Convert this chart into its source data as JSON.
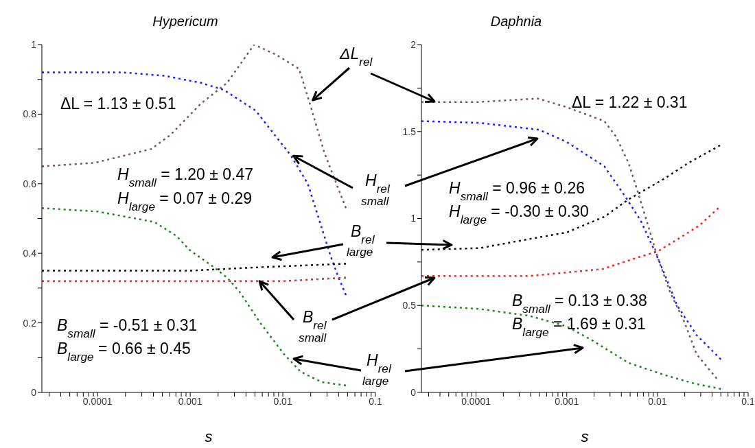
{
  "chart_data": [
    {
      "type": "line",
      "title": "Hypericum",
      "xlabel": "s",
      "log": "x",
      "line_style": "dotted",
      "xlim": [
        2.5e-05,
        0.1
      ],
      "xticks": [
        {
          "value": 3e-05,
          "label": null
        },
        {
          "value": 4e-05,
          "label": null
        },
        {
          "value": 5e-05,
          "label": null
        },
        {
          "value": 6e-05,
          "label": null
        },
        {
          "value": 7e-05,
          "label": null
        },
        {
          "value": 8e-05,
          "label": null
        },
        {
          "value": 9e-05,
          "label": null
        },
        0.0001,
        {
          "value": 0.0002,
          "label": null
        },
        {
          "value": 0.0003,
          "label": null
        },
        {
          "value": 0.0004,
          "label": null
        },
        {
          "value": 0.0005,
          "label": null
        },
        {
          "value": 0.0006,
          "label": null
        },
        {
          "value": 0.0007,
          "label": null
        },
        {
          "value": 0.0008,
          "label": null
        },
        {
          "value": 0.0009,
          "label": null
        },
        0.001,
        {
          "value": 0.002,
          "label": null
        },
        {
          "value": 0.003,
          "label": null
        },
        {
          "value": 0.004,
          "label": null
        },
        {
          "value": 0.005,
          "label": null
        },
        {
          "value": 0.006,
          "label": null
        },
        {
          "value": 0.007,
          "label": null
        },
        {
          "value": 0.008,
          "label": null
        },
        {
          "value": 0.009,
          "label": null
        },
        0.01,
        {
          "value": 0.02,
          "label": null
        },
        {
          "value": 0.03,
          "label": null
        },
        {
          "value": 0.04,
          "label": null
        },
        {
          "value": 0.05,
          "label": null
        },
        {
          "value": 0.06,
          "label": null
        },
        {
          "value": 0.07,
          "label": null
        },
        {
          "value": 0.08,
          "label": null
        },
        {
          "value": 0.09,
          "label": null
        },
        0.1
      ],
      "ylim": [
        0,
        1
      ],
      "yticks": [
        0,
        {
          "value": 0.1,
          "label": null
        },
        0.2,
        {
          "value": 0.3,
          "label": null
        },
        0.4,
        {
          "value": 0.5,
          "label": null
        },
        0.6,
        {
          "value": 0.7,
          "label": null
        },
        0.8,
        {
          "value": 0.9,
          "label": null
        },
        1
      ],
      "series": [
        {
          "color": "#76594f",
          "x": [
            2.5e-05,
            9.3e-05,
            0.00038,
            0.00061,
            0.0013,
            0.0025,
            0.0049,
            0.0086,
            0.015,
            0.0196,
            0.028,
            0.048
          ],
          "values": [
            0.65,
            0.66,
            0.7,
            0.74,
            0.83,
            0.89,
            1.0,
            0.97,
            0.93,
            0.83,
            0.69,
            0.53
          ]
        },
        {
          "color": "#1f1fff",
          "x": [
            2.5e-05,
            0.00019,
            0.00054,
            0.0013,
            0.0023,
            0.0051,
            0.0123,
            0.0186,
            0.028,
            0.033,
            0.04,
            0.048
          ],
          "values": [
            0.92,
            0.92,
            0.91,
            0.89,
            0.87,
            0.81,
            0.68,
            0.6,
            0.45,
            0.39,
            0.33,
            0.28
          ]
        },
        {
          "color": "#1a8a1a",
          "x": [
            2.5e-05,
            0.0001,
            0.00041,
            0.00071,
            0.00098,
            0.0018,
            0.0025,
            0.0034,
            0.0057,
            0.0103,
            0.0155,
            0.026,
            0.048
          ],
          "values": [
            0.53,
            0.52,
            0.49,
            0.45,
            0.41,
            0.36,
            0.33,
            0.29,
            0.2,
            0.11,
            0.06,
            0.03,
            0.02
          ]
        },
        {
          "color": "#111111",
          "x": [
            2.5e-05,
            0.001,
            0.0057,
            0.048
          ],
          "values": [
            0.35,
            0.35,
            0.36,
            0.37
          ]
        },
        {
          "color": "#ff1f1f",
          "x": [
            2.5e-05,
            0.001,
            0.01,
            0.048
          ],
          "values": [
            0.32,
            0.32,
            0.32,
            0.33
          ]
        }
      ],
      "annotations": [
        "ΔL = 1.13 ± 0.51",
        "H$_{small}$ = 1.20 ± 0.47",
        "H$_{large}$ = 0.07 ± 0.29",
        "B$_{small}$ = -0.51 ± 0.31",
        "B$_{large}$ =  0.66 ± 0.45",
        {
          "text": "ΔL$_{rel}$",
          "x": 0.021,
          "y": 0.84
        },
        {
          "text": "H$_{rel}$\n$_{small}$",
          "x": 0.013,
          "y": 0.68
        },
        "B$_{rel}$\n$_{large}$",
        {
          "text": "B$_{rel}$\n$_{small}$",
          "x": 0.0056,
          "y": 0.32
        },
        "H$_{rel}$\n$_{large}$"
      ]
    },
    {
      "type": "line",
      "title": "Daphnia",
      "xlabel": "s",
      "log": "x",
      "line_style": "dotted",
      "xlim": [
        2.5e-05,
        0.1
      ],
      "xticks": [
        {
          "value": 3e-05,
          "label": null
        },
        {
          "value": 4e-05,
          "label": null
        },
        {
          "value": 5e-05,
          "label": null
        },
        {
          "value": 6e-05,
          "label": null
        },
        {
          "value": 7e-05,
          "label": null
        },
        {
          "value": 8e-05,
          "label": null
        },
        {
          "value": 9e-05,
          "label": null
        },
        0.0001,
        {
          "value": 0.0002,
          "label": null
        },
        {
          "value": 0.0003,
          "label": null
        },
        {
          "value": 0.0004,
          "label": null
        },
        {
          "value": 0.0005,
          "label": null
        },
        {
          "value": 0.0006,
          "label": null
        },
        {
          "value": 0.0007,
          "label": null
        },
        {
          "value": 0.0008,
          "label": null
        },
        {
          "value": 0.0009,
          "label": null
        },
        0.001,
        {
          "value": 0.002,
          "label": null
        },
        {
          "value": 0.003,
          "label": null
        },
        {
          "value": 0.004,
          "label": null
        },
        {
          "value": 0.005,
          "label": null
        },
        {
          "value": 0.006,
          "label": null
        },
        {
          "value": 0.007,
          "label": null
        },
        {
          "value": 0.008,
          "label": null
        },
        {
          "value": 0.009,
          "label": null
        },
        0.01,
        {
          "value": 0.02,
          "label": null
        },
        {
          "value": 0.03,
          "label": null
        },
        {
          "value": 0.04,
          "label": null
        },
        {
          "value": 0.05,
          "label": null
        },
        {
          "value": 0.06,
          "label": null
        },
        {
          "value": 0.07,
          "label": null
        },
        {
          "value": 0.08,
          "label": null
        },
        {
          "value": 0.09,
          "label": null
        },
        0.1
      ],
      "ylim": [
        0,
        2
      ],
      "yticks": [
        0,
        {
          "value": 0.25,
          "label": null
        },
        0.5,
        {
          "value": 0.75,
          "label": null
        },
        1,
        {
          "value": 1.25,
          "label": null
        },
        1.5,
        {
          "value": 1.75,
          "label": null
        },
        2
      ],
      "series": [
        {
          "color": "#76594f",
          "x": [
            2.5e-05,
            0.00011,
            0.00048,
            0.001,
            0.0026,
            0.0035,
            0.0048,
            0.0061,
            0.0081,
            0.01,
            0.0137,
            0.02,
            0.027,
            0.045
          ],
          "values": [
            1.67,
            1.67,
            1.69,
            1.64,
            1.56,
            1.47,
            1.32,
            1.15,
            0.94,
            0.78,
            0.58,
            0.4,
            0.22,
            0.08
          ]
        },
        {
          "color": "#1f1fff",
          "x": [
            2.5e-05,
            0.00011,
            0.0005,
            0.001,
            0.0026,
            0.0045,
            0.0065,
            0.0094,
            0.012,
            0.0165,
            0.027,
            0.05
          ],
          "values": [
            1.56,
            1.55,
            1.51,
            1.44,
            1.3,
            1.12,
            0.99,
            0.81,
            0.68,
            0.5,
            0.33,
            0.19
          ]
        },
        {
          "color": "#111111",
          "x": [
            2.5e-05,
            0.00011,
            0.00047,
            0.001,
            0.0026,
            0.0048,
            0.012,
            0.022,
            0.049
          ],
          "values": [
            0.82,
            0.83,
            0.89,
            0.92,
            1.01,
            1.11,
            1.23,
            1.32,
            1.42
          ]
        },
        {
          "color": "#ff1f1f",
          "x": [
            2.5e-05,
            0.00039,
            0.001,
            0.0025,
            0.0064,
            0.01,
            0.0166,
            0.029,
            0.047
          ],
          "values": [
            0.67,
            0.67,
            0.69,
            0.71,
            0.78,
            0.81,
            0.88,
            0.96,
            1.06
          ]
        },
        {
          "color": "#1a8a1a",
          "x": [
            2.5e-05,
            0.00011,
            0.00039,
            0.001,
            0.0019,
            0.0048,
            0.012,
            0.026,
            0.05
          ],
          "values": [
            0.5,
            0.48,
            0.44,
            0.38,
            0.3,
            0.17,
            0.1,
            0.05,
            0.02
          ]
        }
      ],
      "annotations": [
        "ΔL = 1.22 ± 0.31",
        "H$_{small}$ =  0.96 ± 0.26",
        "H$_{large}$ = -0.30 ± 0.30",
        "B$_{small}$ = 0.13 ± 0.38",
        "B$_{large}$ = 1.69 ± 0.31"
      ]
    }
  ]
}
